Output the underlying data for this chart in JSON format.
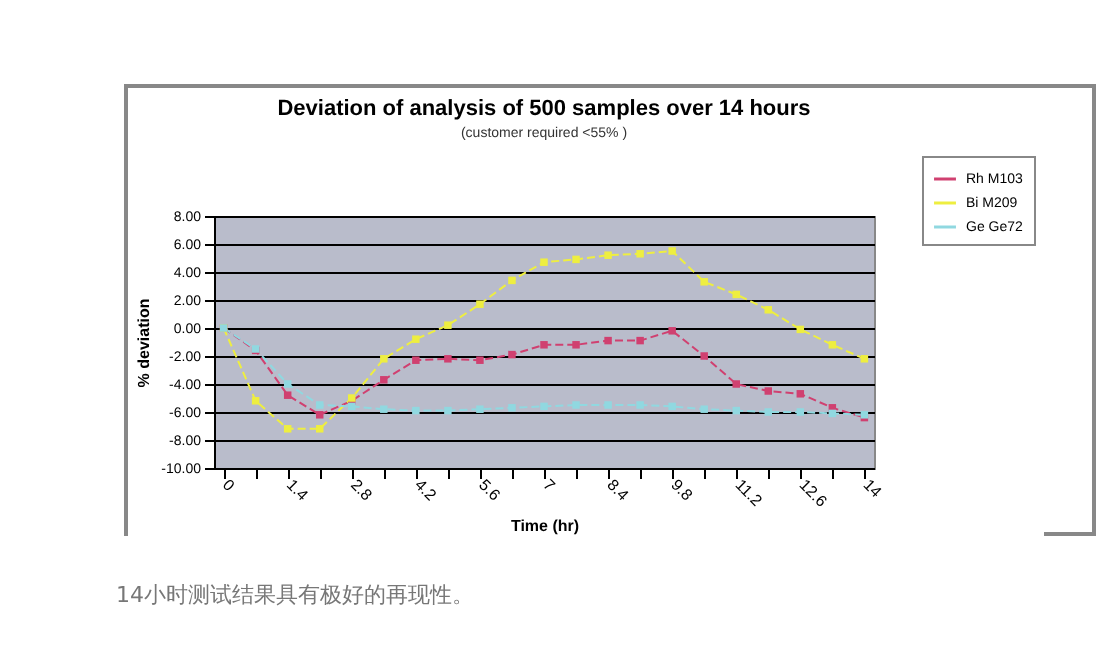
{
  "chart_data": {
    "type": "line",
    "title": "Deviation of analysis of 500 samples over 14 hours",
    "subtitle": "(customer required <55% )",
    "xlabel": "Time (hr)",
    "ylabel": "% deviation",
    "categories": [
      "0",
      null,
      "1.4",
      null,
      "2.8",
      null,
      "4.2",
      null,
      "5.6",
      null,
      "7",
      null,
      "8.4",
      null,
      "9.8",
      null,
      "11.2",
      null,
      "12.6",
      null,
      "14"
    ],
    "series": [
      {
        "name": "Rh M103",
        "color": "#d04070",
        "values": [
          0,
          -1.6,
          -4.8,
          -6.2,
          -5.2,
          -3.7,
          -2.3,
          -2.2,
          -2.3,
          -1.9,
          -1.2,
          -1.2,
          -0.9,
          -0.9,
          -0.2,
          -2.0,
          -4.0,
          -4.5,
          -4.7,
          -5.7,
          -6.4
        ]
      },
      {
        "name": "Bi M209",
        "color": "#eeee40",
        "values": [
          0,
          -5.2,
          -7.2,
          -7.2,
          -5.0,
          -2.2,
          -0.8,
          0.2,
          1.7,
          3.4,
          4.7,
          4.9,
          5.2,
          5.3,
          5.5,
          3.3,
          2.4,
          1.3,
          -0.1,
          -1.2,
          -2.2
        ]
      },
      {
        "name": "Ge Ge72",
        "color": "#90d8e0",
        "values": [
          0,
          -1.5,
          -4.0,
          -5.5,
          -5.6,
          -5.8,
          -5.9,
          -5.9,
          -5.8,
          -5.7,
          -5.6,
          -5.5,
          -5.5,
          -5.5,
          -5.6,
          -5.8,
          -5.9,
          -6.0,
          -6.0,
          -6.1,
          -6.2
        ]
      }
    ],
    "ylim": [
      -10,
      8
    ],
    "yticks": [
      {
        "value": -10,
        "label": "-10.00"
      },
      {
        "value": -8,
        "label": "-8.00"
      },
      {
        "value": -6,
        "label": "-6.00"
      },
      {
        "value": -4,
        "label": "-4.00"
      },
      {
        "value": -2,
        "label": "-2.00"
      },
      {
        "value": 0,
        "label": "0.00"
      },
      {
        "value": 2,
        "label": "2.00"
      },
      {
        "value": 4,
        "label": "4.00"
      },
      {
        "value": 6,
        "label": "6.00"
      },
      {
        "value": 8,
        "label": "8.00"
      }
    ],
    "grid": "y",
    "legend": "top right",
    "marker": "square",
    "line_style": "dashed",
    "annotations": [
      "14小时测试结果具有极好的再现性。"
    ]
  }
}
